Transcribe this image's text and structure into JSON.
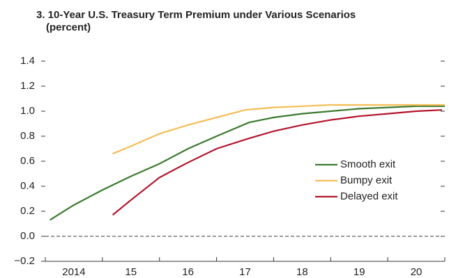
{
  "chart_data": {
    "type": "line",
    "title": "3. 10-Year U.S. Treasury Term Premium under Various Scenarios",
    "subtitle": "(percent)",
    "xlim": [
      2014,
      2021
    ],
    "xticks": [
      2014,
      2015,
      2016,
      2017,
      2018,
      2019,
      2020,
      2021
    ],
    "xlabels": [
      {
        "value": 2014.5,
        "label": "2014"
      },
      {
        "value": 2015.5,
        "label": "15"
      },
      {
        "value": 2016.5,
        "label": "16"
      },
      {
        "value": 2017.5,
        "label": "17"
      },
      {
        "value": 2018.5,
        "label": "18"
      },
      {
        "value": 2019.5,
        "label": "19"
      },
      {
        "value": 2020.5,
        "label": "20"
      }
    ],
    "ylim": [
      -0.2,
      1.4
    ],
    "yticks": [
      {
        "value": -0.2,
        "label": "−0.2"
      },
      {
        "value": 0,
        "label": "0.0"
      },
      0.2,
      0.4,
      0.6,
      0.8,
      {
        "value": 1,
        "label": "1.0"
      },
      1.2,
      1.4
    ],
    "series": [
      {
        "name": "Smooth exit",
        "color": "#3b7a2e",
        "x": [
          2014.08,
          2014.5,
          2015.0,
          2015.5,
          2016.0,
          2016.5,
          2017.0,
          2017.57,
          2018.0,
          2018.5,
          2019.0,
          2019.5,
          2020.0,
          2020.5,
          2021.0
        ],
        "values": [
          0.13,
          0.25,
          0.37,
          0.48,
          0.58,
          0.7,
          0.8,
          0.91,
          0.95,
          0.98,
          1.0,
          1.02,
          1.03,
          1.04,
          1.04
        ]
      },
      {
        "name": "Bumpy exit",
        "color": "#f5bd55",
        "x": [
          2015.18,
          2015.5,
          2016.0,
          2016.5,
          2017.0,
          2017.5,
          2018.0,
          2018.5,
          2019.0,
          2019.5,
          2020.0,
          2020.5,
          2021.0
        ],
        "values": [
          0.66,
          0.72,
          0.82,
          0.89,
          0.95,
          1.01,
          1.03,
          1.04,
          1.05,
          1.05,
          1.05,
          1.05,
          1.05
        ]
      },
      {
        "name": "Delayed exit",
        "color": "#b3142c",
        "x": [
          2015.18,
          2015.5,
          2016.0,
          2016.5,
          2017.0,
          2017.55,
          2018.0,
          2018.5,
          2019.0,
          2019.5,
          2020.0,
          2020.5,
          2020.95
        ],
        "values": [
          0.17,
          0.29,
          0.47,
          0.59,
          0.7,
          0.78,
          0.84,
          0.89,
          0.93,
          0.96,
          0.98,
          1.0,
          1.01
        ]
      }
    ]
  }
}
